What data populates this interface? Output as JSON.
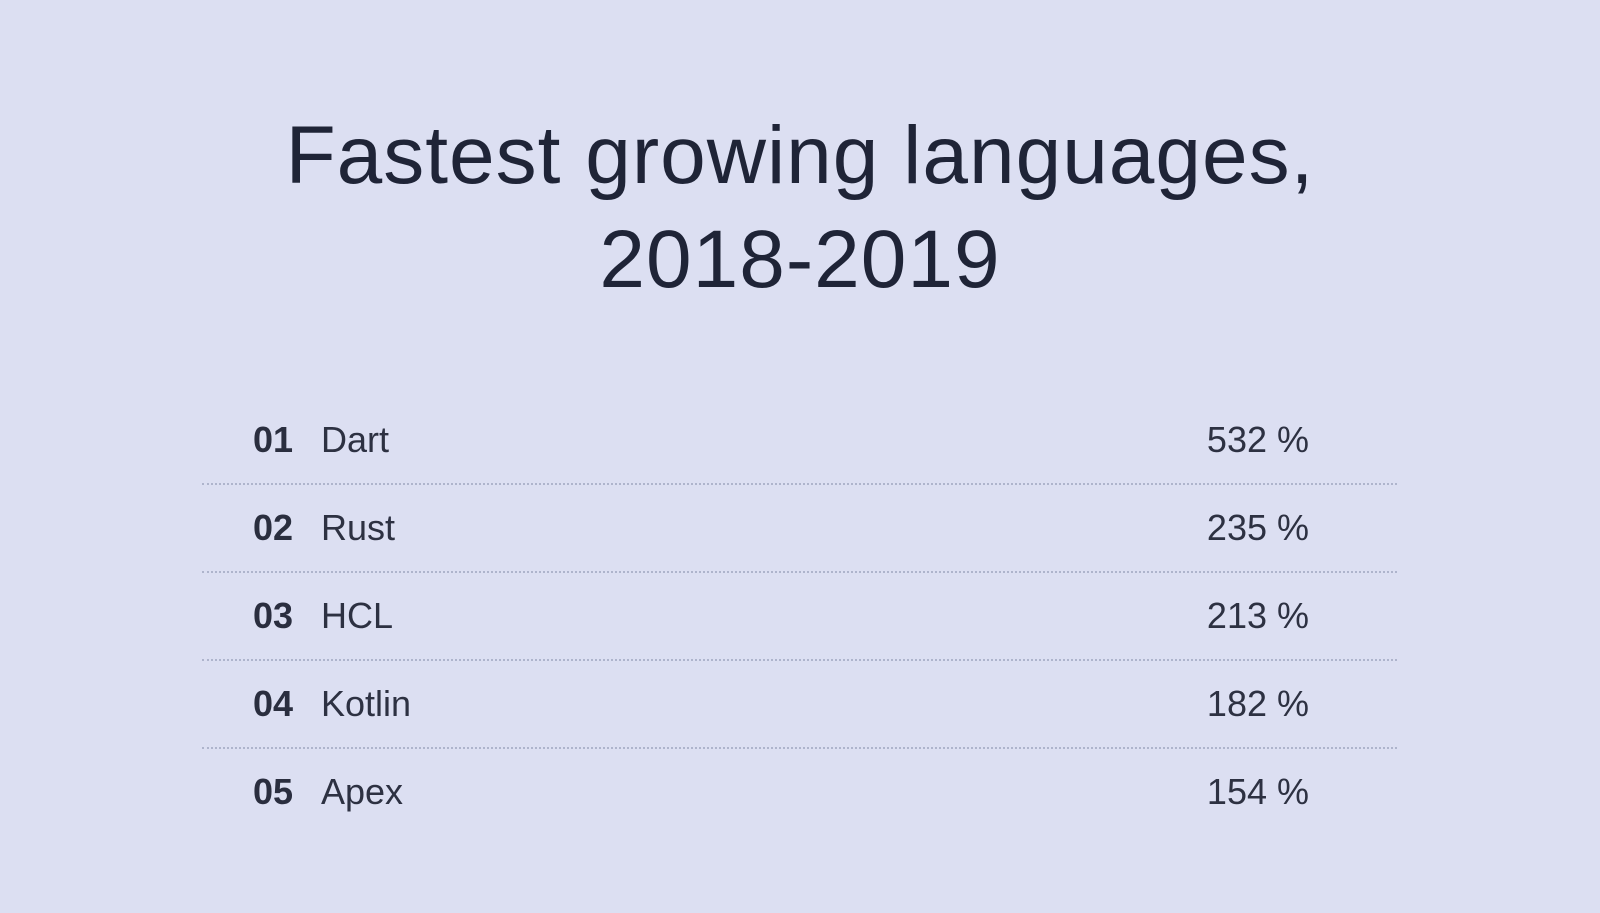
{
  "title": {
    "line1": "Fastest growing languages,",
    "line2": "2018-2019"
  },
  "ranking": {
    "rows": [
      {
        "rank": "01",
        "language": "Dart",
        "growth": "532 %"
      },
      {
        "rank": "02",
        "language": "Rust",
        "growth": "235 %"
      },
      {
        "rank": "03",
        "language": "HCL",
        "growth": "213 %"
      },
      {
        "rank": "04",
        "language": "Kotlin",
        "growth": "182 %"
      },
      {
        "rank": "05",
        "language": "Apex",
        "growth": "154 %"
      }
    ]
  },
  "colors": {
    "background": "#dcdff2",
    "text": "#1f2437",
    "divider": "#aeb4cc"
  }
}
